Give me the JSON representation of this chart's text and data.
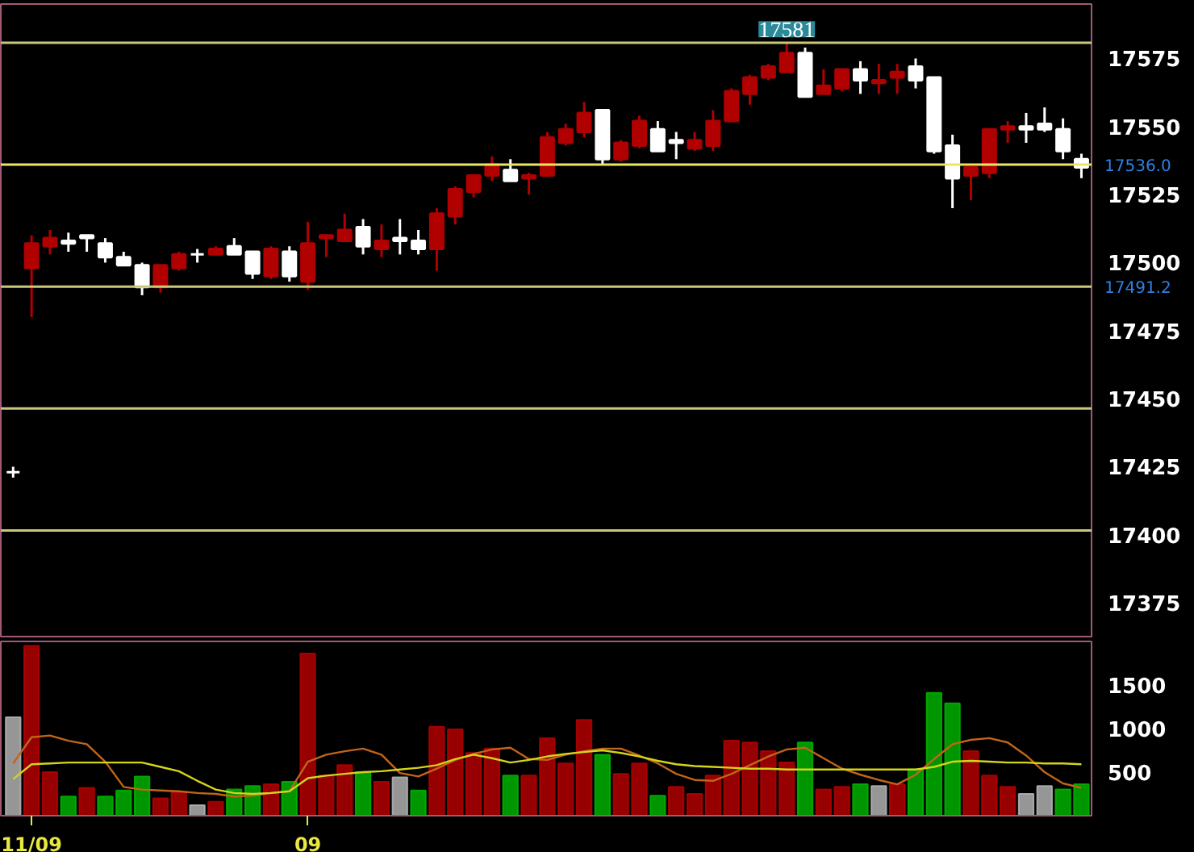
{
  "chart_data": [
    {
      "type": "candlestick",
      "categories": [
        null,
        null,
        null,
        null,
        null,
        null,
        null,
        null,
        null,
        null,
        null,
        null,
        null,
        null,
        null,
        null,
        null,
        null,
        null,
        null,
        null,
        null,
        null,
        null,
        null,
        null,
        null,
        null,
        null,
        null,
        null,
        null,
        null,
        null,
        null,
        null,
        null,
        null,
        null,
        null,
        null,
        null,
        null,
        null,
        null,
        null,
        null,
        null,
        null,
        null,
        null,
        null,
        null,
        null,
        null,
        null,
        null,
        null,
        null
      ],
      "ohlc": [
        [
          17423,
          17425,
          17421,
          17423
        ],
        [
          17498,
          17510,
          17480,
          17507
        ],
        [
          17506,
          17512,
          17503,
          17509
        ],
        [
          17508,
          17511,
          17504,
          17507
        ],
        [
          17510,
          17510,
          17504,
          17509
        ],
        [
          17507,
          17509,
          17500,
          17502
        ],
        [
          17502,
          17504,
          17499,
          17499
        ],
        [
          17499,
          17500,
          17488,
          17491
        ],
        [
          17491,
          17499,
          17489,
          17499
        ],
        [
          17498,
          17504,
          17497,
          17503
        ],
        [
          17503,
          17505,
          17500,
          17503
        ],
        [
          17503,
          17506,
          17503,
          17505
        ],
        [
          17506,
          17509,
          17503,
          17503
        ],
        [
          17504,
          17504,
          17494,
          17496
        ],
        [
          17495,
          17506,
          17494,
          17505
        ],
        [
          17504,
          17506,
          17493,
          17495
        ],
        [
          17493,
          17515,
          17490,
          17507
        ],
        [
          17509,
          17510,
          17502,
          17510
        ],
        [
          17508,
          17518,
          17508,
          17512
        ],
        [
          17513,
          17516,
          17503,
          17506
        ],
        [
          17505,
          17514,
          17502,
          17508
        ],
        [
          17509,
          17516,
          17503,
          17508
        ],
        [
          17508,
          17512,
          17503,
          17505
        ],
        [
          17505,
          17520,
          17497,
          17518
        ],
        [
          17517,
          17528,
          17514,
          17527
        ],
        [
          17526,
          17532,
          17524,
          17532
        ],
        [
          17532,
          17539,
          17530,
          17536
        ],
        [
          17534,
          17538,
          17530,
          17530
        ],
        [
          17531,
          17533,
          17525,
          17532
        ],
        [
          17532,
          17548,
          17532,
          17546
        ],
        [
          17544,
          17551,
          17543,
          17549
        ],
        [
          17548,
          17559,
          17546,
          17555
        ],
        [
          17556,
          17556,
          17536,
          17538
        ],
        [
          17538,
          17545,
          17537,
          17544
        ],
        [
          17543,
          17554,
          17542,
          17552
        ],
        [
          17549,
          17552,
          17541,
          17541
        ],
        [
          17545,
          17548,
          17538,
          17544
        ],
        [
          17542,
          17548,
          17541,
          17545
        ],
        [
          17543,
          17556,
          17541,
          17552
        ],
        [
          17552,
          17564,
          17552,
          17563
        ],
        [
          17562,
          17569,
          17558,
          17568
        ],
        [
          17568,
          17573,
          17567,
          17572
        ],
        [
          17570,
          17581,
          17570,
          17577
        ],
        [
          17577,
          17579,
          17561,
          17561
        ],
        [
          17562,
          17571,
          17562,
          17565
        ],
        [
          17564,
          17571,
          17563,
          17571
        ],
        [
          17571,
          17574,
          17562,
          17567
        ],
        [
          17566,
          17573,
          17562,
          17567
        ],
        [
          17568,
          17573,
          17562,
          17570
        ],
        [
          17572,
          17575,
          17564,
          17567
        ],
        [
          17568,
          17568,
          17540,
          17541
        ],
        [
          17543,
          17547,
          17520,
          17531
        ],
        [
          17532,
          17535,
          17523,
          17535
        ],
        [
          17533,
          17549,
          17531,
          17549
        ],
        [
          17549,
          17552,
          17544,
          17550
        ],
        [
          17550,
          17555,
          17544,
          17549
        ],
        [
          17551,
          17557,
          17548,
          17549
        ],
        [
          17549,
          17553,
          17538,
          17541
        ],
        [
          17538,
          17540,
          17531,
          17535
        ]
      ],
      "colors": [
        "#ffffff",
        "#b00000",
        "#b00000",
        "#ffffff",
        "#ffffff",
        "#ffffff",
        "#ffffff",
        "#ffffff",
        "#b00000",
        "#b00000",
        "#ffffff",
        "#b00000",
        "#ffffff",
        "#ffffff",
        "#b00000",
        "#ffffff",
        "#b00000",
        "#b00000",
        "#b00000",
        "#ffffff",
        "#b00000",
        "#ffffff",
        "#ffffff",
        "#b00000",
        "#b00000",
        "#b00000",
        "#b00000",
        "#ffffff",
        "#b00000",
        "#b00000",
        "#b00000",
        "#b00000",
        "#ffffff",
        "#b00000",
        "#b00000",
        "#ffffff",
        "#ffffff",
        "#b00000",
        "#b00000",
        "#b00000",
        "#b00000",
        "#b00000",
        "#b00000",
        "#ffffff",
        "#b00000",
        "#b00000",
        "#ffffff",
        "#b00000",
        "#b00000",
        "#ffffff",
        "#ffffff",
        "#ffffff",
        "#b00000",
        "#b00000",
        "#b00000",
        "#ffffff",
        "#ffffff",
        "#ffffff",
        "#ffffff"
      ],
      "ylim": [
        17362,
        17595
      ],
      "yticks": [
        17375,
        17400,
        17425,
        17450,
        17475,
        17500,
        17525,
        17550,
        17575
      ],
      "ref_lines": [
        {
          "axis": "y",
          "value": 17580.8,
          "label": null,
          "color": "#c8c87a"
        },
        {
          "axis": "y",
          "value": 17536.0,
          "label": "17536.0",
          "color": "#e8e860"
        },
        {
          "axis": "y",
          "value": 17491.2,
          "label": "17491.2",
          "color": "#c8c87a"
        },
        {
          "axis": "y",
          "value": 17446.4,
          "label": null,
          "color": "#c8c87a"
        },
        {
          "axis": "y",
          "value": 17401.6,
          "label": null,
          "color": "#c8c87a"
        }
      ],
      "annotations": [
        {
          "text": "17581",
          "y": 17581
        }
      ],
      "tick_labels": "y"
    },
    {
      "type": "bar",
      "categories": [
        null,
        "11/09",
        null,
        null,
        null,
        null,
        null,
        null,
        null,
        null,
        null,
        null,
        null,
        null,
        null,
        null,
        "09",
        null,
        null,
        null,
        null,
        null,
        null,
        null,
        null,
        null,
        null,
        null,
        null,
        null,
        null,
        null,
        null,
        null,
        null,
        null,
        null,
        null,
        null,
        null,
        null,
        null,
        null,
        null,
        null,
        null,
        null,
        null,
        null,
        null,
        null,
        null,
        null,
        null,
        null,
        null,
        null,
        null,
        null
      ],
      "series": [
        {
          "type": "bar",
          "values": [
            1130,
            1950,
            500,
            220,
            320,
            220,
            290,
            450,
            200,
            270,
            120,
            160,
            300,
            340,
            360,
            390,
            1860,
            460,
            580,
            500,
            390,
            440,
            290,
            1020,
            990,
            720,
            770,
            460,
            460,
            890,
            600,
            1100,
            700,
            480,
            600,
            230,
            330,
            250,
            460,
            860,
            840,
            740,
            610,
            840,
            300,
            330,
            360,
            340,
            360,
            530,
            1410,
            1290,
            740,
            460,
            330,
            250,
            340,
            300,
            360
          ],
          "colors": [
            "#b0b0b0",
            "#b00000",
            "#b00000",
            "#00b000",
            "#b00000",
            "#00b000",
            "#00b000",
            "#00b000",
            "#b00000",
            "#b00000",
            "#b0b0b0",
            "#b00000",
            "#00b000",
            "#00b000",
            "#b00000",
            "#00b000",
            "#b00000",
            "#b00000",
            "#b00000",
            "#00b000",
            "#b00000",
            "#b0b0b0",
            "#00b000",
            "#b00000",
            "#b00000",
            "#b00000",
            "#b00000",
            "#00b000",
            "#b00000",
            "#b00000",
            "#b00000",
            "#b00000",
            "#00b000",
            "#b00000",
            "#b00000",
            "#00b000",
            "#b00000",
            "#b00000",
            "#b00000",
            "#b00000",
            "#b00000",
            "#b00000",
            "#b00000",
            "#00b000",
            "#b00000",
            "#b00000",
            "#00b000",
            "#b0b0b0",
            "#b00000",
            "#00b000",
            "#00b000",
            "#00b000",
            "#b00000",
            "#b00000",
            "#b00000",
            "#b0b0b0",
            "#b0b0b0",
            "#00b000",
            "#00b000"
          ]
        },
        {
          "type": "line",
          "color": "#c0651a",
          "values": [
            600,
            900,
            920,
            860,
            820,
            620,
            330,
            300,
            290,
            280,
            260,
            250,
            220,
            230,
            260,
            280,
            620,
            700,
            740,
            770,
            700,
            490,
            450,
            540,
            640,
            710,
            760,
            780,
            650,
            640,
            700,
            740,
            770,
            770,
            690,
            600,
            480,
            410,
            400,
            480,
            580,
            680,
            760,
            780,
            660,
            540,
            470,
            410,
            360,
            470,
            650,
            820,
            870,
            890,
            840,
            690,
            500,
            370,
            320
          ]
        },
        {
          "type": "line",
          "color": "#d4d41a",
          "values": [
            420,
            590,
            600,
            610,
            610,
            610,
            610,
            610,
            560,
            510,
            400,
            300,
            260,
            250,
            260,
            280,
            430,
            460,
            480,
            500,
            510,
            530,
            550,
            580,
            650,
            700,
            660,
            610,
            640,
            680,
            710,
            730,
            750,
            720,
            680,
            630,
            590,
            570,
            560,
            550,
            540,
            540,
            530,
            530,
            530,
            530,
            530,
            530,
            530,
            530,
            560,
            620,
            630,
            620,
            610,
            610,
            600,
            600,
            590
          ]
        }
      ],
      "ylim": [
        0,
        2000
      ],
      "yticks": [
        500,
        1000,
        1500
      ]
    }
  ]
}
